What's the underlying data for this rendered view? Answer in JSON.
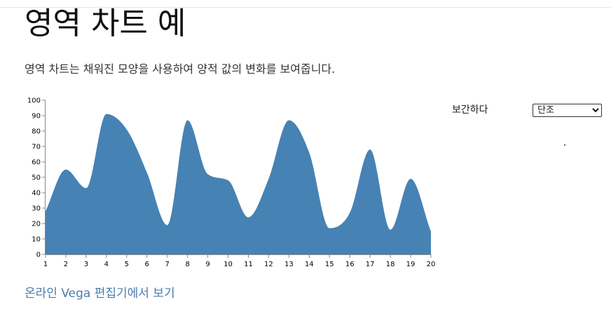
{
  "page": {
    "title": "영역 차트 예",
    "description": "영역 차트는 채워진 모양을 사용하여 양적 값의 변화를 보여줍니다.",
    "link_text": "온라인 Vega 편집기에서 보기"
  },
  "controls": {
    "interpolate_label": "보간하다",
    "interpolate_value": "단조",
    "interpolate_options": [
      "단조"
    ]
  },
  "colors": {
    "area": "#4682b4",
    "axis": "#888888",
    "link": "#4a7cad"
  },
  "chart_data": {
    "type": "area",
    "interpolation": "monotone",
    "x": [
      1,
      2,
      3,
      4,
      5,
      6,
      7,
      8,
      9,
      10,
      11,
      12,
      13,
      14,
      15,
      16,
      17,
      18,
      19,
      20
    ],
    "y": [
      28,
      55,
      43,
      91,
      81,
      53,
      19,
      87,
      52,
      48,
      24,
      49,
      87,
      66,
      17,
      27,
      68,
      16,
      49,
      15
    ],
    "xlim": [
      1,
      20
    ],
    "ylim": [
      0,
      100
    ],
    "y_ticks": [
      0,
      10,
      20,
      30,
      40,
      50,
      60,
      70,
      80,
      90,
      100
    ],
    "x_ticks": [
      1,
      2,
      3,
      4,
      5,
      6,
      7,
      8,
      9,
      10,
      11,
      12,
      13,
      14,
      15,
      16,
      17,
      18,
      19,
      20
    ],
    "grid": false,
    "legend": "none"
  }
}
